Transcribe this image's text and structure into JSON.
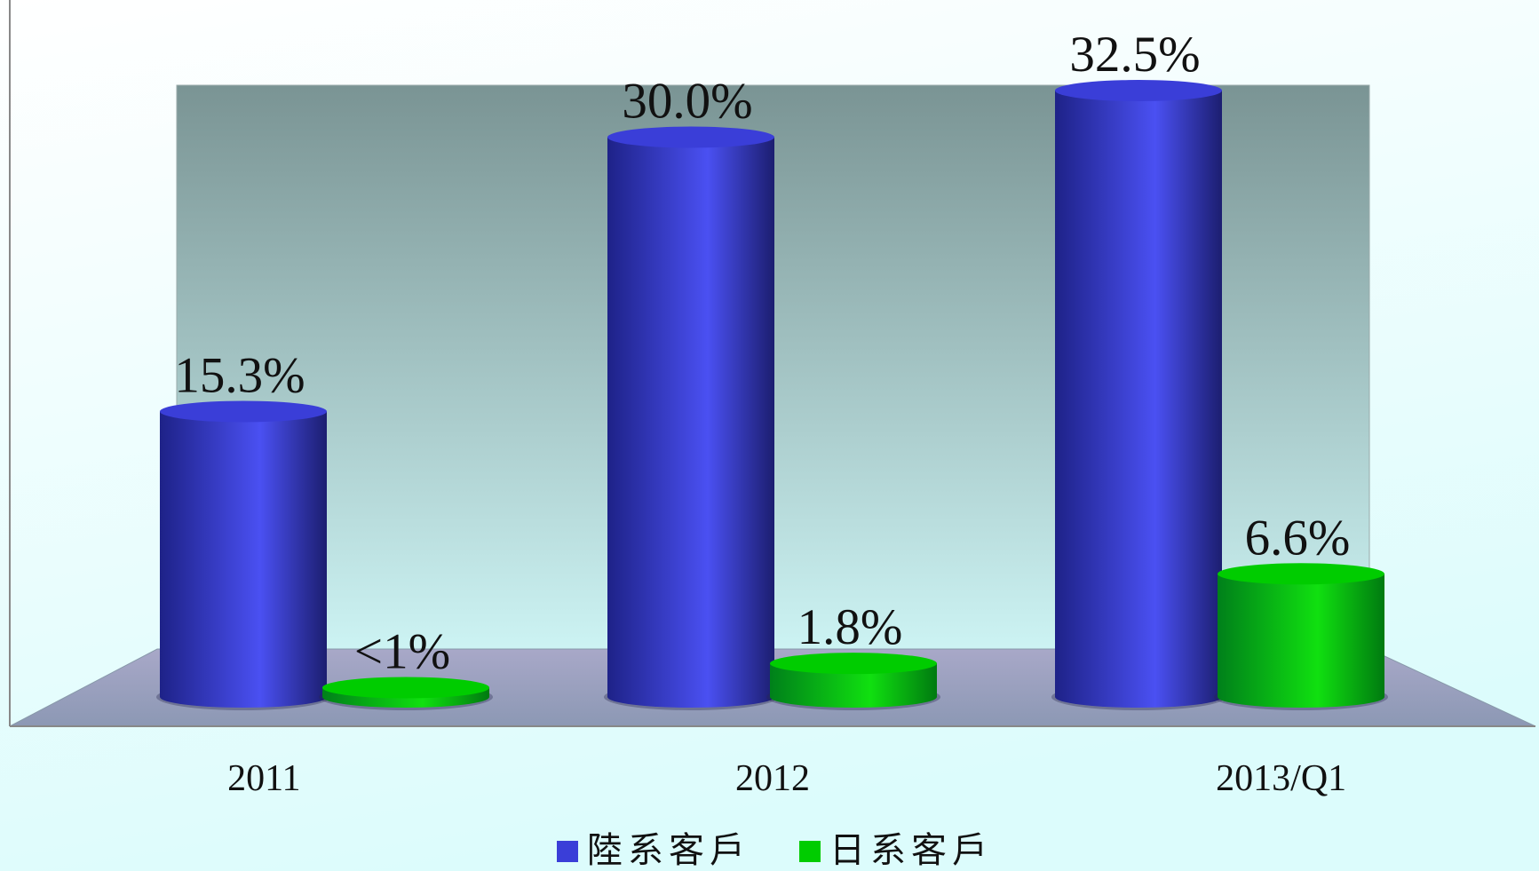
{
  "chart_data": {
    "type": "bar",
    "categories": [
      "2011",
      "2012",
      "2013/Q1"
    ],
    "series": [
      {
        "name": "陸系客戶",
        "color": "#3a3ed8",
        "values": [
          15.3,
          30,
          32.5
        ],
        "value_labels": [
          "15.3%",
          "30.0%",
          "32.5%"
        ]
      },
      {
        "name": "日系客戶",
        "color": "#00cc00",
        "values": [
          0.5,
          1.8,
          6.6
        ],
        "value_labels": [
          "<1%",
          "1.8%",
          "6.6%"
        ]
      }
    ]
  }
}
